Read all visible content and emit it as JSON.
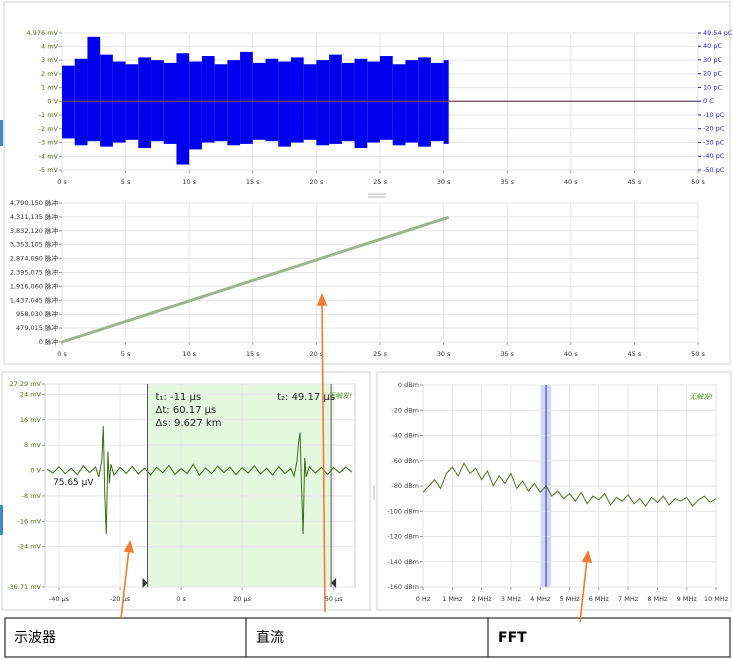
{
  "chart_data": [
    {
      "type": "range",
      "xlim": [
        0,
        50
      ],
      "xticks": [
        {
          "value": 0,
          "label": "0 s"
        },
        {
          "value": 5,
          "label": "5 s"
        },
        {
          "value": 10,
          "label": "10 s"
        },
        {
          "value": 15,
          "label": "15 s"
        },
        {
          "value": 20,
          "label": "20 s"
        },
        {
          "value": 25,
          "label": "25 s"
        },
        {
          "value": 30,
          "label": "30 s"
        },
        {
          "value": 35,
          "label": "35 s"
        },
        {
          "value": 40,
          "label": "40 s"
        },
        {
          "value": 45,
          "label": "45 s"
        },
        {
          "value": 50,
          "label": "50 s"
        }
      ],
      "ylim": [
        -5,
        4.976
      ],
      "yticks": [
        {
          "value": 4.976,
          "label": "4.976 mV"
        },
        {
          "value": 4,
          "label": "4 mV"
        },
        {
          "value": 3,
          "label": "3 mV"
        },
        {
          "value": 2,
          "label": "2 mV"
        },
        {
          "value": 1,
          "label": "1 mV"
        },
        {
          "value": 0,
          "label": "0 V"
        },
        {
          "value": -1,
          "label": "-1 mV"
        },
        {
          "value": -2,
          "label": "-2 mV"
        },
        {
          "value": -3,
          "label": "-3 mV"
        },
        {
          "value": -4,
          "label": "-4 mV"
        },
        {
          "value": -5,
          "label": "-5 mV"
        }
      ],
      "y2lim": [
        -50,
        49.54
      ],
      "y2ticks": [
        {
          "value": 49.54,
          "label": "49.54 pC"
        },
        {
          "value": 40,
          "label": "40 pC"
        },
        {
          "value": 30,
          "label": "30 pC"
        },
        {
          "value": 20,
          "label": "20 pC"
        },
        {
          "value": 10,
          "label": "10 pC"
        },
        {
          "value": 0,
          "label": "0 C"
        },
        {
          "value": -10,
          "label": "-10 pC"
        },
        {
          "value": -20,
          "label": "-20 pC"
        },
        {
          "value": -30,
          "label": "-30 pC"
        },
        {
          "value": -40,
          "label": "-40 pC"
        },
        {
          "value": -50,
          "label": "-50 pC"
        }
      ],
      "grid": true,
      "series": [
        {
          "color": "#0000ee",
          "bins": [
            0,
            1,
            2,
            3,
            4,
            5,
            6,
            7,
            8,
            9,
            10,
            11,
            12,
            13,
            14,
            15,
            16,
            17,
            18,
            19,
            20,
            21,
            22,
            23,
            24,
            25,
            26,
            27,
            28,
            29,
            30,
            30.4
          ],
          "low": [
            -2.7,
            -3.2,
            -2.9,
            -3.3,
            -3.0,
            -2.8,
            -3.4,
            -2.9,
            -3.1,
            -4.6,
            -3.5,
            -3.0,
            -2.9,
            -3.2,
            -3.1,
            -2.8,
            -2.9,
            -3.3,
            -3.0,
            -2.8,
            -3.2,
            -3.1,
            -2.9,
            -3.4,
            -3.0,
            -2.8,
            -3.2,
            -3.0,
            -3.3,
            -2.9,
            -3.1
          ],
          "high": [
            2.6,
            3.1,
            4.7,
            3.4,
            2.9,
            2.7,
            3.2,
            3.0,
            2.8,
            3.5,
            2.9,
            3.3,
            2.7,
            3.0,
            3.6,
            2.8,
            3.1,
            2.9,
            3.2,
            2.7,
            3.0,
            3.4,
            2.8,
            3.1,
            2.9,
            3.3,
            2.7,
            3.0,
            3.2,
            2.8,
            3.0
          ]
        },
        {
          "color": "#0000ee",
          "x": [
            30.4,
            50
          ],
          "values": [
            0,
            0
          ]
        },
        {
          "color": "#7a5c2e",
          "x": [
            0,
            50
          ],
          "values": [
            0,
            0
          ]
        }
      ]
    },
    {
      "type": "line",
      "xlim": [
        0,
        50
      ],
      "xticks": [
        {
          "value": 0,
          "label": "0 s"
        },
        {
          "value": 5,
          "label": "5 s"
        },
        {
          "value": 10,
          "label": "10 s"
        },
        {
          "value": 15,
          "label": "15 s"
        },
        {
          "value": 20,
          "label": "20 s"
        },
        {
          "value": 25,
          "label": "25 s"
        },
        {
          "value": 30,
          "label": "30 s"
        },
        {
          "value": 35,
          "label": "35 s"
        },
        {
          "value": 40,
          "label": "40 s"
        },
        {
          "value": 45,
          "label": "45 s"
        },
        {
          "value": 50,
          "label": "50 s"
        }
      ],
      "ylim": [
        0,
        4790150
      ],
      "yticks": [
        {
          "value": 4790150,
          "label": "4,790,150 脉冲"
        },
        {
          "value": 4311135,
          "label": "4,311,135 脉冲"
        },
        {
          "value": 3832120,
          "label": "3,832,120 脉冲"
        },
        {
          "value": 3353105,
          "label": "3,353,105 脉冲"
        },
        {
          "value": 2874090,
          "label": "2,874,090 脉冲"
        },
        {
          "value": 2395075,
          "label": "2,395,075 脉冲"
        },
        {
          "value": 1916060,
          "label": "1,916,060 脉冲"
        },
        {
          "value": 1437045,
          "label": "1,437,045 脉冲"
        },
        {
          "value": 958030,
          "label": "958,030 脉冲"
        },
        {
          "value": 479015,
          "label": "479,015 脉冲"
        },
        {
          "value": 0,
          "label": "0 脉冲"
        }
      ],
      "grid": true,
      "series": [
        {
          "color": "#9db58a",
          "x": [
            0,
            30.4
          ],
          "values": [
            0,
            4300000
          ]
        }
      ]
    },
    {
      "type": "line",
      "xlim": [
        -44.6,
        57
      ],
      "xticks": [
        {
          "value": -40,
          "label": "-40 µs"
        },
        {
          "value": -20,
          "label": "-20 µs"
        },
        {
          "value": 0,
          "label": "0 s"
        },
        {
          "value": 20,
          "label": "20 µs"
        },
        {
          "value": 50,
          "label": "50 µs"
        }
      ],
      "ylim": [
        -36.71,
        27.29
      ],
      "yticks": [
        {
          "value": 27.29,
          "label": "27.29 mV"
        },
        {
          "value": 24,
          "label": "24 mV"
        },
        {
          "value": 16,
          "label": "16 mV"
        },
        {
          "value": 8,
          "label": "8 mV"
        },
        {
          "value": 0,
          "label": "0 V"
        },
        {
          "value": -8,
          "label": "-8 mV"
        },
        {
          "value": -16,
          "label": "-16 mV"
        },
        {
          "value": -24,
          "label": "-24 mV"
        },
        {
          "value": -36.71,
          "label": "-36.71 mV"
        }
      ],
      "grid": true,
      "cursors": [
        -11,
        49.17
      ],
      "cursor_labels": [
        "t₁: -11 µs",
        "t₂: 49.17 µs"
      ],
      "annotations": [
        "Δt: 60.17 µs",
        "Δs: 9.627 km"
      ],
      "marker_label": "75.65 µV",
      "status": "无触发!",
      "series": [
        {
          "color": "#3a6b14",
          "x": [
            -44,
            -42,
            -40,
            -38,
            -36,
            -34,
            -32,
            -30,
            -28,
            -27,
            -26,
            -25.5,
            -25,
            -24.5,
            -24,
            -23.5,
            -23,
            -22,
            -20,
            -18,
            -16,
            -14,
            -12,
            -10,
            -8,
            -6,
            -4,
            -2,
            0,
            2,
            4,
            6,
            8,
            10,
            12,
            14,
            16,
            18,
            20,
            22,
            24,
            26,
            28,
            30,
            32,
            34,
            36,
            37,
            38,
            38.5,
            39,
            39.5,
            40,
            40.5,
            41,
            42,
            44,
            46,
            48,
            50,
            52,
            54,
            56
          ],
          "values": [
            0.5,
            -0.8,
            1.2,
            -1,
            0.7,
            -1.3,
            1.5,
            -0.6,
            1.1,
            -2,
            3,
            14,
            -8,
            -20,
            6,
            -4,
            2,
            -1.5,
            1,
            -0.9,
            1.3,
            -1.1,
            0.8,
            -1.4,
            1,
            -0.7,
            1.6,
            -1.2,
            0.6,
            -0.9,
            2,
            -1.5,
            0.8,
            -1,
            1.4,
            -0.6,
            1.1,
            -1.3,
            0.9,
            -0.8,
            1.5,
            -1.1,
            0.7,
            -1.4,
            1.2,
            -0.9,
            0.6,
            -1.8,
            3,
            9,
            12,
            -6,
            -20,
            4,
            -2,
            1.2,
            -0.8,
            1,
            -1.2,
            0.9,
            -0.7,
            1.1,
            -0.5
          ]
        }
      ]
    },
    {
      "type": "line",
      "xlim": [
        0,
        10
      ],
      "xticks": [
        {
          "value": 0,
          "label": "0 Hz"
        },
        {
          "value": 1,
          "label": "1 MHz"
        },
        {
          "value": 2,
          "label": "2 MHz"
        },
        {
          "value": 3,
          "label": "3 MHz"
        },
        {
          "value": 4,
          "label": "4 MHz"
        },
        {
          "value": 5,
          "label": "5 MHz"
        },
        {
          "value": 6,
          "label": "6 MHz"
        },
        {
          "value": 7,
          "label": "7 MHz"
        },
        {
          "value": 8,
          "label": "8 MHz"
        },
        {
          "value": 9,
          "label": "9 MHz"
        },
        {
          "value": 10,
          "label": "10 MHz"
        }
      ],
      "ylim": [
        -160,
        0
      ],
      "yticks": [
        {
          "value": 0,
          "label": "0 dBm"
        },
        {
          "value": -20,
          "label": "-20 dBm"
        },
        {
          "value": -40,
          "label": "-40 dBm"
        },
        {
          "value": -60,
          "label": "-60 dBm"
        },
        {
          "value": -80,
          "label": "-80 dBm"
        },
        {
          "value": -100,
          "label": "-100 dBm"
        },
        {
          "value": -120,
          "label": "-120 dBm"
        },
        {
          "value": -140,
          "label": "-140 dBm"
        },
        {
          "value": -160,
          "label": "-160 dBm"
        }
      ],
      "grid": true,
      "cursor": 4.2,
      "status": "无触发!",
      "series": [
        {
          "color": "#4c7a1f",
          "x": [
            0,
            0.2,
            0.4,
            0.6,
            0.8,
            1,
            1.2,
            1.4,
            1.6,
            1.8,
            2,
            2.2,
            2.4,
            2.6,
            2.8,
            3,
            3.2,
            3.4,
            3.6,
            3.8,
            4,
            4.2,
            4.4,
            4.6,
            4.8,
            5,
            5.2,
            5.4,
            5.6,
            5.8,
            6,
            6.2,
            6.4,
            6.6,
            6.8,
            7,
            7.2,
            7.4,
            7.6,
            7.8,
            8,
            8.2,
            8.4,
            8.6,
            8.8,
            9,
            9.2,
            9.4,
            9.6,
            9.8,
            10
          ],
          "values": [
            -85,
            -80,
            -75,
            -82,
            -70,
            -65,
            -72,
            -62,
            -70,
            -66,
            -75,
            -68,
            -80,
            -72,
            -78,
            -70,
            -82,
            -76,
            -84,
            -78,
            -85,
            -80,
            -88,
            -84,
            -90,
            -86,
            -92,
            -85,
            -94,
            -88,
            -91,
            -86,
            -95,
            -89,
            -92,
            -87,
            -94,
            -90,
            -96,
            -89,
            -93,
            -88,
            -95,
            -90,
            -92,
            -89,
            -96,
            -91,
            -88,
            -93,
            -90
          ]
        }
      ]
    }
  ],
  "table": {
    "rows": [
      [
        "示波器",
        "直流",
        "FFT"
      ]
    ]
  }
}
